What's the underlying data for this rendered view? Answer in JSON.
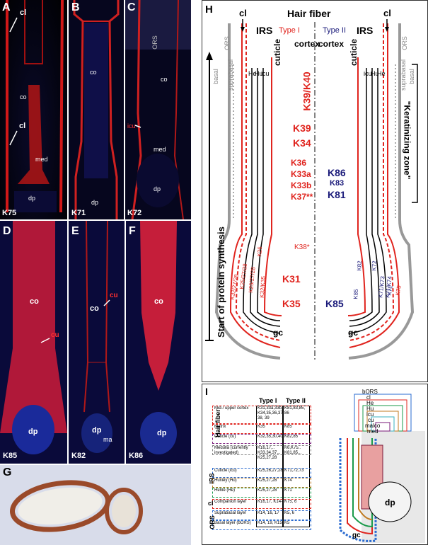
{
  "panels": {
    "A": {
      "letter": "A",
      "marker": "K75",
      "labels": {
        "cl_top": "cl",
        "cl_bottom": "cl",
        "co": "co",
        "med": "med",
        "dp": "dp"
      }
    },
    "B": {
      "letter": "B",
      "marker": "K71",
      "labels": {
        "co": "co",
        "dp": "dp"
      }
    },
    "C": {
      "letter": "C",
      "marker": "K72",
      "labels": {
        "ors": "ORS",
        "co": "co",
        "icu": "icu",
        "med": "med",
        "dp": "dp"
      }
    },
    "D": {
      "letter": "D",
      "marker": "K85",
      "labels": {
        "co": "co",
        "cu": "cu",
        "dp": "dp"
      }
    },
    "E": {
      "letter": "E",
      "marker": "K82",
      "labels": {
        "co": "co",
        "cu": "cu",
        "dp": "dp",
        "ma": "ma"
      }
    },
    "F": {
      "letter": "F",
      "marker": "K86",
      "labels": {
        "co": "co",
        "dp": "dp"
      }
    },
    "G": {
      "letter": "G"
    }
  },
  "H": {
    "letter": "H",
    "title": "Hair fiber",
    "cl_left": "cl",
    "cl_right": "cl",
    "irs_left": "IRS",
    "irs_right": "IRS",
    "type1": "Type I",
    "type2": "Type II",
    "cuticle": "cuticle",
    "cortex": "cortex",
    "ors": "ORS",
    "basal": "basal",
    "suprabasal": "suprabasal",
    "he": "He",
    "hu": "Hu",
    "icu": "icu",
    "keratinizing": "\"Keratinizing zone\"",
    "axis": "Start of protein synthesis",
    "gc": "gc",
    "type1_keratins": [
      "K39/K40",
      "K39",
      "K34",
      "K36",
      "K33a",
      "K33b",
      "K37**",
      "K38*",
      "K31",
      "K35"
    ],
    "type2_keratins": [
      "K86",
      "K83",
      "K81",
      "K85"
    ],
    "left_layers": [
      "K32/27/28",
      "K25/27/28",
      "K25/27/28",
      "K26",
      "K32/K35"
    ],
    "right_layers": [
      "K82",
      "K72",
      "K71/K73",
      "K71/K74",
      "K71",
      "K75",
      "K85"
    ]
  },
  "I": {
    "letter": "I",
    "col_type1": "Type I",
    "col_type2": "Type II",
    "rows": [
      {
        "name": "Mid-/ upper cortex",
        "t1": "K31,33a,33b, K34,35,36,37 38, 39",
        "t2": "K81,83,85, 86"
      },
      {
        "name": "Matrix",
        "t1": "K35",
        "t2": "K85"
      },
      {
        "name": "Cuticle (cu)",
        "t1": "K32,35,30,40",
        "t2": "K82,85"
      },
      {
        "name": "Medulla (currently investigated)",
        "t1": "K16,17,.. K33,34,37,.. K25,27,28",
        "t2": "K6,K75.. K81,85,.."
      },
      {
        "name": "Cuticle (icu)",
        "t1": "K25,26,27,28",
        "t2": "K71,72,73"
      },
      {
        "name": "Huxley (Hu)",
        "t1": "K25,27,28",
        "t2": "K74"
      },
      {
        "name": "Henle (He)",
        "t1": "K25,27,28",
        "t2": "K71"
      },
      {
        "name": "Companion layer",
        "t1": "K16,17, K14-",
        "t2": "K75, 6"
      },
      {
        "name": "Suprabasal layer",
        "t1": "K14, 16, 17",
        "t2": "K5, 6"
      },
      {
        "name": "Basal layer (bORS)",
        "t1": "K14, 19, K15",
        "t2": "K5"
      }
    ],
    "groups": {
      "hair_fiber": "Hair fiber",
      "irs": "IRS",
      "cl": "cl",
      "ors": "ORS"
    },
    "schematic_labels": [
      "bORS",
      "cl",
      "He",
      "Hu",
      "icu",
      "cu",
      "malco",
      "med"
    ],
    "dp": "dp",
    "gc": "gc"
  },
  "colors": {
    "red": "#e0241e",
    "navy": "#1a1a7a",
    "blue": "#1b2fb5"
  }
}
